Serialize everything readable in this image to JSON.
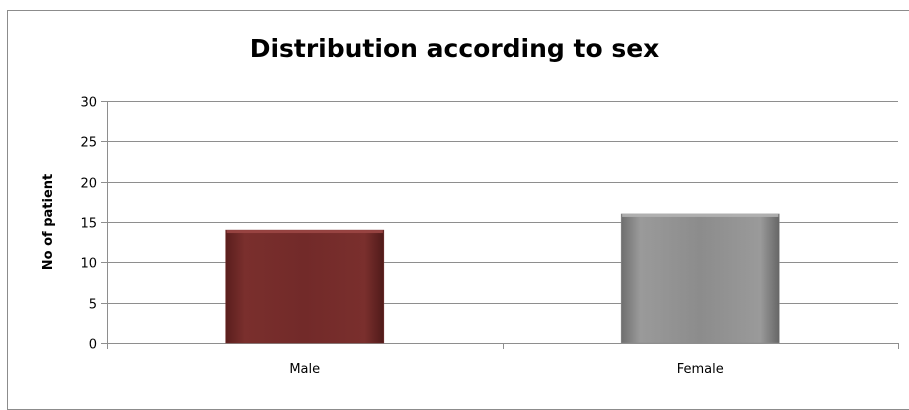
{
  "chart_data": {
    "type": "bar",
    "title": "Distribution according to sex",
    "xlabel": "",
    "ylabel": "No of patient",
    "categories": [
      "Male",
      "Female"
    ],
    "values": [
      14,
      16
    ],
    "ylim": [
      0,
      30
    ],
    "yticks": [
      0,
      5,
      10,
      15,
      20,
      25,
      30
    ],
    "grid": true,
    "legend": "none",
    "colors": {
      "bars": [
        "#722a29",
        "#8c8c8c"
      ],
      "bar_highlights": [
        "#9b4644",
        "#b3b3b3"
      ],
      "gridline": "#8e8e8e",
      "axis": "#8e8e8e"
    }
  }
}
